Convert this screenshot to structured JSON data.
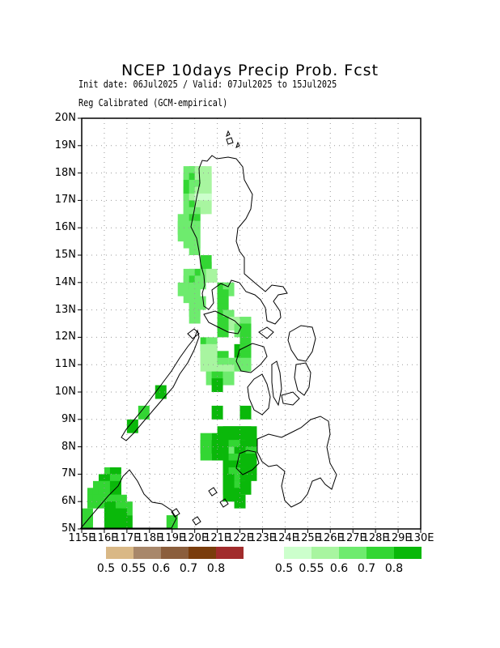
{
  "title": "NCEP 10days Precip Prob. Fcst",
  "subtitle_line1": "Init date: 06Jul2025 / Valid: 07Jul2025 to 15Jul2025",
  "subtitle_line2": "Reg Calibrated (GCM-empirical)",
  "lat_labels": [
    "20N",
    "19N",
    "18N",
    "17N",
    "16N",
    "15N",
    "14N",
    "13N",
    "12N",
    "11N",
    "10N",
    "9N",
    "8N",
    "7N",
    "6N",
    "5N"
  ],
  "lon_labels": [
    "115E",
    "116E",
    "117E",
    "118E",
    "119E",
    "120E",
    "121E",
    "122E",
    "123E",
    "124E",
    "125E",
    "126E",
    "127E",
    "128E",
    "129E",
    "130E"
  ],
  "map_extent": {
    "lon_min": 115,
    "lon_max": 130,
    "lat_min": 5,
    "lat_max": 20
  },
  "legend_dry": {
    "colors": [
      "#d9b886",
      "#a8876a",
      "#8b5e3c",
      "#7a3d0c",
      "#a12c2c"
    ],
    "labels": [
      "0.5",
      "0.55",
      "0.6",
      "0.7",
      "0.8"
    ]
  },
  "legend_wet": {
    "colors": [
      "#ccffcc",
      "#a8f5a0",
      "#6eeb6e",
      "#33d633",
      "#0ab80a"
    ],
    "labels": [
      "0.5",
      "0.55",
      "0.6",
      "0.7",
      "0.8"
    ]
  },
  "prob_cells": [
    {
      "lon": 119.75,
      "lat": 18.0,
      "lvl": 2
    },
    {
      "lon": 120.0,
      "lat": 18.0,
      "lvl": 2
    },
    {
      "lon": 120.25,
      "lat": 18.0,
      "lvl": 1
    },
    {
      "lon": 120.5,
      "lat": 18.0,
      "lvl": 1
    },
    {
      "lon": 119.75,
      "lat": 17.75,
      "lvl": 2
    },
    {
      "lon": 120.0,
      "lat": 17.75,
      "lvl": 3
    },
    {
      "lon": 120.25,
      "lat": 17.75,
      "lvl": 1
    },
    {
      "lon": 120.5,
      "lat": 17.75,
      "lvl": 1
    },
    {
      "lon": 119.75,
      "lat": 17.5,
      "lvl": 3
    },
    {
      "lon": 120.0,
      "lat": 17.5,
      "lvl": 2
    },
    {
      "lon": 120.25,
      "lat": 17.5,
      "lvl": 2
    },
    {
      "lon": 120.5,
      "lat": 17.5,
      "lvl": 1
    },
    {
      "lon": 119.75,
      "lat": 17.25,
      "lvl": 3
    },
    {
      "lon": 120.0,
      "lat": 17.25,
      "lvl": 2
    },
    {
      "lon": 120.25,
      "lat": 17.25,
      "lvl": 1
    },
    {
      "lon": 120.5,
      "lat": 17.25,
      "lvl": 1
    },
    {
      "lon": 119.75,
      "lat": 17.0,
      "lvl": 2
    },
    {
      "lon": 120.0,
      "lat": 17.0,
      "lvl": 1
    },
    {
      "lon": 120.25,
      "lat": 17.0,
      "lvl": 0
    },
    {
      "lon": 120.5,
      "lat": 17.0,
      "lvl": 0
    },
    {
      "lon": 119.75,
      "lat": 16.75,
      "lvl": 2
    },
    {
      "lon": 120.0,
      "lat": 16.75,
      "lvl": 3
    },
    {
      "lon": 120.25,
      "lat": 16.75,
      "lvl": 1
    },
    {
      "lon": 120.5,
      "lat": 16.75,
      "lvl": 1
    },
    {
      "lon": 119.75,
      "lat": 16.5,
      "lvl": 2
    },
    {
      "lon": 120.0,
      "lat": 16.5,
      "lvl": 2
    },
    {
      "lon": 119.5,
      "lat": 16.25,
      "lvl": 2
    },
    {
      "lon": 119.75,
      "lat": 16.25,
      "lvl": 2
    },
    {
      "lon": 120.0,
      "lat": 16.25,
      "lvl": 3
    },
    {
      "lon": 119.5,
      "lat": 16.0,
      "lvl": 2
    },
    {
      "lon": 119.75,
      "lat": 16.0,
      "lvl": 2
    },
    {
      "lon": 120.0,
      "lat": 16.0,
      "lvl": 2
    },
    {
      "lon": 119.5,
      "lat": 15.75,
      "lvl": 2
    },
    {
      "lon": 119.75,
      "lat": 15.75,
      "lvl": 2
    },
    {
      "lon": 120.0,
      "lat": 15.75,
      "lvl": 2
    },
    {
      "lon": 119.75,
      "lat": 15.5,
      "lvl": 2
    },
    {
      "lon": 120.0,
      "lat": 15.5,
      "lvl": 2
    },
    {
      "lon": 120.0,
      "lat": 15.25,
      "lvl": 2
    },
    {
      "lon": 120.5,
      "lat": 14.75,
      "lvl": 3
    },
    {
      "lon": 120.5,
      "lat": 14.5,
      "lvl": 3
    },
    {
      "lon": 119.75,
      "lat": 14.25,
      "lvl": 2
    },
    {
      "lon": 120.0,
      "lat": 14.25,
      "lvl": 2
    },
    {
      "lon": 120.25,
      "lat": 14.25,
      "lvl": 3
    },
    {
      "lon": 120.5,
      "lat": 14.25,
      "lvl": 2
    },
    {
      "lon": 120.75,
      "lat": 14.25,
      "lvl": 1
    },
    {
      "lon": 119.75,
      "lat": 14.0,
      "lvl": 2
    },
    {
      "lon": 120.0,
      "lat": 14.0,
      "lvl": 3
    },
    {
      "lon": 120.25,
      "lat": 14.0,
      "lvl": 2
    },
    {
      "lon": 119.5,
      "lat": 13.75,
      "lvl": 2
    },
    {
      "lon": 120.0,
      "lat": 13.75,
      "lvl": 2
    },
    {
      "lon": 121.25,
      "lat": 13.75,
      "lvl": 3
    },
    {
      "lon": 121.5,
      "lat": 13.75,
      "lvl": 2
    },
    {
      "lon": 119.75,
      "lat": 13.5,
      "lvl": 2
    },
    {
      "lon": 120.0,
      "lat": 13.5,
      "lvl": 2
    },
    {
      "lon": 121.25,
      "lat": 13.5,
      "lvl": 3
    },
    {
      "lon": 120.0,
      "lat": 13.25,
      "lvl": 2
    },
    {
      "lon": 120.25,
      "lat": 13.25,
      "lvl": 2
    },
    {
      "lon": 121.25,
      "lat": 13.25,
      "lvl": 3
    },
    {
      "lon": 120.0,
      "lat": 13.0,
      "lvl": 2
    },
    {
      "lon": 121.25,
      "lat": 13.0,
      "lvl": 3
    },
    {
      "lon": 120.0,
      "lat": 12.75,
      "lvl": 2
    },
    {
      "lon": 121.5,
      "lat": 12.75,
      "lvl": 2
    },
    {
      "lon": 121.25,
      "lat": 12.5,
      "lvl": 3
    },
    {
      "lon": 121.75,
      "lat": 12.5,
      "lvl": 1
    },
    {
      "lon": 122.25,
      "lat": 12.5,
      "lvl": 2
    },
    {
      "lon": 121.25,
      "lat": 12.25,
      "lvl": 3
    },
    {
      "lon": 122.0,
      "lat": 12.25,
      "lvl": 2
    },
    {
      "lon": 122.25,
      "lat": 12.25,
      "lvl": 3
    },
    {
      "lon": 120.5,
      "lat": 11.75,
      "lvl": 3
    },
    {
      "lon": 120.75,
      "lat": 11.75,
      "lvl": 2
    },
    {
      "lon": 122.25,
      "lat": 11.75,
      "lvl": 3
    },
    {
      "lon": 120.5,
      "lat": 11.5,
      "lvl": 1
    },
    {
      "lon": 120.75,
      "lat": 11.5,
      "lvl": 1
    },
    {
      "lon": 122.0,
      "lat": 11.5,
      "lvl": 4
    },
    {
      "lon": 122.25,
      "lat": 11.5,
      "lvl": 3
    },
    {
      "lon": 120.5,
      "lat": 11.25,
      "lvl": 1
    },
    {
      "lon": 120.75,
      "lat": 11.25,
      "lvl": 1
    },
    {
      "lon": 121.25,
      "lat": 11.25,
      "lvl": 3
    },
    {
      "lon": 122.25,
      "lat": 11.25,
      "lvl": 3
    },
    {
      "lon": 120.5,
      "lat": 11.0,
      "lvl": 1
    },
    {
      "lon": 121.25,
      "lat": 11.0,
      "lvl": 2
    },
    {
      "lon": 121.75,
      "lat": 11.0,
      "lvl": 2
    },
    {
      "lon": 122.25,
      "lat": 11.0,
      "lvl": 2
    },
    {
      "lon": 120.75,
      "lat": 10.75,
      "lvl": 1
    },
    {
      "lon": 121.0,
      "lat": 10.75,
      "lvl": 1
    },
    {
      "lon": 121.5,
      "lat": 10.75,
      "lvl": 1
    },
    {
      "lon": 120.75,
      "lat": 10.5,
      "lvl": 2
    },
    {
      "lon": 121.0,
      "lat": 10.5,
      "lvl": 3
    },
    {
      "lon": 121.5,
      "lat": 10.5,
      "lvl": 2
    },
    {
      "lon": 121.0,
      "lat": 10.25,
      "lvl": 4
    },
    {
      "lon": 118.5,
      "lat": 10.0,
      "lvl": 4
    },
    {
      "lon": 117.75,
      "lat": 9.25,
      "lvl": 3
    },
    {
      "lon": 121.0,
      "lat": 9.25,
      "lvl": 4
    },
    {
      "lon": 122.25,
      "lat": 9.25,
      "lvl": 4
    },
    {
      "lon": 117.25,
      "lat": 8.75,
      "lvl": 4
    },
    {
      "lon": 121.25,
      "lat": 8.5,
      "lvl": 4
    },
    {
      "lon": 121.5,
      "lat": 8.5,
      "lvl": 4
    },
    {
      "lon": 121.75,
      "lat": 8.5,
      "lvl": 4
    },
    {
      "lon": 122.0,
      "lat": 8.5,
      "lvl": 4
    },
    {
      "lon": 122.25,
      "lat": 8.5,
      "lvl": 4
    },
    {
      "lon": 122.5,
      "lat": 8.5,
      "lvl": 4
    },
    {
      "lon": 120.5,
      "lat": 8.25,
      "lvl": 3
    },
    {
      "lon": 121.0,
      "lat": 8.25,
      "lvl": 4
    },
    {
      "lon": 121.25,
      "lat": 8.25,
      "lvl": 4
    },
    {
      "lon": 121.5,
      "lat": 8.25,
      "lvl": 4
    },
    {
      "lon": 121.75,
      "lat": 8.25,
      "lvl": 4
    },
    {
      "lon": 122.0,
      "lat": 8.25,
      "lvl": 4
    },
    {
      "lon": 122.25,
      "lat": 8.25,
      "lvl": 4
    },
    {
      "lon": 122.5,
      "lat": 8.25,
      "lvl": 4
    },
    {
      "lon": 120.5,
      "lat": 8.0,
      "lvl": 3
    },
    {
      "lon": 121.0,
      "lat": 8.0,
      "lvl": 4
    },
    {
      "lon": 121.25,
      "lat": 8.0,
      "lvl": 4
    },
    {
      "lon": 121.5,
      "lat": 8.0,
      "lvl": 4
    },
    {
      "lon": 121.75,
      "lat": 8.0,
      "lvl": 3
    },
    {
      "lon": 122.0,
      "lat": 8.0,
      "lvl": 3
    },
    {
      "lon": 122.25,
      "lat": 8.0,
      "lvl": 4
    },
    {
      "lon": 122.5,
      "lat": 8.0,
      "lvl": 4
    },
    {
      "lon": 120.5,
      "lat": 7.75,
      "lvl": 3
    },
    {
      "lon": 121.0,
      "lat": 7.75,
      "lvl": 4
    },
    {
      "lon": 121.5,
      "lat": 7.75,
      "lvl": 4
    },
    {
      "lon": 121.75,
      "lat": 7.75,
      "lvl": 2
    },
    {
      "lon": 122.0,
      "lat": 7.75,
      "lvl": 4
    },
    {
      "lon": 122.25,
      "lat": 7.75,
      "lvl": 4
    },
    {
      "lon": 122.5,
      "lat": 7.75,
      "lvl": 3
    },
    {
      "lon": 121.5,
      "lat": 7.5,
      "lvl": 4
    },
    {
      "lon": 121.75,
      "lat": 7.5,
      "lvl": 3
    },
    {
      "lon": 122.0,
      "lat": 7.5,
      "lvl": 3
    },
    {
      "lon": 122.25,
      "lat": 7.5,
      "lvl": 4
    },
    {
      "lon": 122.5,
      "lat": 7.5,
      "lvl": 4
    },
    {
      "lon": 121.5,
      "lat": 7.25,
      "lvl": 4
    },
    {
      "lon": 121.75,
      "lat": 7.25,
      "lvl": 4
    },
    {
      "lon": 122.0,
      "lat": 7.25,
      "lvl": 4
    },
    {
      "lon": 122.25,
      "lat": 7.25,
      "lvl": 4
    },
    {
      "lon": 122.5,
      "lat": 7.25,
      "lvl": 4
    },
    {
      "lon": 121.5,
      "lat": 7.0,
      "lvl": 4
    },
    {
      "lon": 121.75,
      "lat": 7.0,
      "lvl": 3
    },
    {
      "lon": 122.0,
      "lat": 7.0,
      "lvl": 3
    },
    {
      "lon": 122.25,
      "lat": 7.0,
      "lvl": 4
    },
    {
      "lon": 122.5,
      "lat": 7.0,
      "lvl": 4
    },
    {
      "lon": 121.5,
      "lat": 6.75,
      "lvl": 4
    },
    {
      "lon": 121.75,
      "lat": 6.75,
      "lvl": 4
    },
    {
      "lon": 122.0,
      "lat": 6.75,
      "lvl": 3
    },
    {
      "lon": 122.25,
      "lat": 6.75,
      "lvl": 4
    },
    {
      "lon": 121.5,
      "lat": 6.5,
      "lvl": 4
    },
    {
      "lon": 121.75,
      "lat": 6.5,
      "lvl": 4
    },
    {
      "lon": 122.0,
      "lat": 6.5,
      "lvl": 3
    },
    {
      "lon": 122.25,
      "lat": 6.5,
      "lvl": 4
    },
    {
      "lon": 121.5,
      "lat": 6.25,
      "lvl": 4
    },
    {
      "lon": 121.75,
      "lat": 6.25,
      "lvl": 4
    },
    {
      "lon": 122.0,
      "lat": 6.0,
      "lvl": 4
    },
    {
      "lon": 116.25,
      "lat": 7.0,
      "lvl": 3
    },
    {
      "lon": 116.5,
      "lat": 7.0,
      "lvl": 4
    },
    {
      "lon": 116.0,
      "lat": 6.75,
      "lvl": 4
    },
    {
      "lon": 116.25,
      "lat": 6.75,
      "lvl": 4
    },
    {
      "lon": 116.5,
      "lat": 6.75,
      "lvl": 3
    },
    {
      "lon": 115.75,
      "lat": 6.5,
      "lvl": 3
    },
    {
      "lon": 116.0,
      "lat": 6.5,
      "lvl": 3
    },
    {
      "lon": 116.25,
      "lat": 6.5,
      "lvl": 3
    },
    {
      "lon": 116.5,
      "lat": 6.5,
      "lvl": 4
    },
    {
      "lon": 115.5,
      "lat": 6.25,
      "lvl": 3
    },
    {
      "lon": 115.75,
      "lat": 6.25,
      "lvl": 3
    },
    {
      "lon": 116.0,
      "lat": 6.25,
      "lvl": 3
    },
    {
      "lon": 116.25,
      "lat": 6.25,
      "lvl": 3
    },
    {
      "lon": 116.5,
      "lat": 6.25,
      "lvl": 4
    },
    {
      "lon": 115.5,
      "lat": 6.0,
      "lvl": 3
    },
    {
      "lon": 115.75,
      "lat": 6.0,
      "lvl": 3
    },
    {
      "lon": 116.25,
      "lat": 6.0,
      "lvl": 3
    },
    {
      "lon": 116.5,
      "lat": 6.0,
      "lvl": 3
    },
    {
      "lon": 116.75,
      "lat": 6.0,
      "lvl": 3
    },
    {
      "lon": 116.25,
      "lat": 5.75,
      "lvl": 4
    },
    {
      "lon": 116.5,
      "lat": 5.75,
      "lvl": 4
    },
    {
      "lon": 116.75,
      "lat": 5.75,
      "lvl": 3
    },
    {
      "lon": 117.0,
      "lat": 5.75,
      "lvl": 3
    },
    {
      "lon": 115.25,
      "lat": 5.5,
      "lvl": 3
    },
    {
      "lon": 116.25,
      "lat": 5.5,
      "lvl": 4
    },
    {
      "lon": 116.5,
      "lat": 5.5,
      "lvl": 4
    },
    {
      "lon": 116.75,
      "lat": 5.5,
      "lvl": 4
    },
    {
      "lon": 115.25,
      "lat": 5.25,
      "lvl": 3
    },
    {
      "lon": 116.25,
      "lat": 5.25,
      "lvl": 4
    },
    {
      "lon": 116.5,
      "lat": 5.25,
      "lvl": 4
    },
    {
      "lon": 116.75,
      "lat": 5.25,
      "lvl": 4
    },
    {
      "lon": 117.0,
      "lat": 5.25,
      "lvl": 4
    },
    {
      "lon": 119.0,
      "lat": 5.25,
      "lvl": 3
    }
  ]
}
